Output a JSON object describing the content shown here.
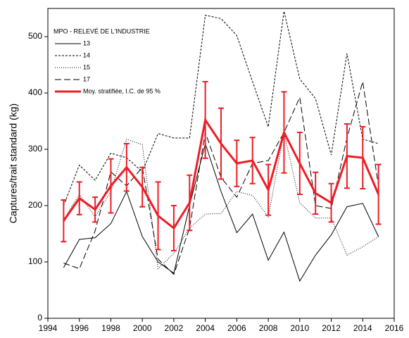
{
  "chart_data": {
    "type": "line",
    "ylabel": "Captures/trait standard (kg)",
    "legend_title": "MPO - RELEVÉ DE L'INDUSTRIE",
    "legend": "upper left",
    "grid": false,
    "xlim": [
      1994,
      2016
    ],
    "xticks": [
      1994,
      1996,
      1998,
      2000,
      2002,
      2004,
      2006,
      2008,
      2010,
      2012,
      2014,
      2016
    ],
    "ylim": [
      0,
      550
    ],
    "yticks": [
      0,
      100,
      200,
      300,
      400,
      500
    ],
    "x": [
      1995,
      1996,
      1997,
      1998,
      1999,
      2000,
      2001,
      2002,
      2003,
      2004,
      2005,
      2006,
      2007,
      2008,
      2009,
      2010,
      2011,
      2012,
      2013,
      2014,
      2015
    ],
    "series": [
      {
        "name": "13",
        "color": "#000000",
        "dash": "none",
        "width": 1,
        "values": [
          90,
          140,
          143,
          168,
          225,
          145,
          100,
          80,
          200,
          310,
          225,
          152,
          185,
          103,
          153,
          66,
          112,
          148,
          198,
          204,
          145
        ]
      },
      {
        "name": "14",
        "color": "#000000",
        "dash": "3,2",
        "width": 1,
        "values": [
          200,
          272,
          245,
          293,
          285,
          260,
          328,
          320,
          320,
          538,
          532,
          502,
          420,
          340,
          545,
          425,
          390,
          290,
          470,
          318,
          310
        ]
      },
      {
        "name": "15",
        "color": "#000000",
        "dash": "1,2",
        "width": 1,
        "values": [
          175,
          220,
          180,
          225,
          318,
          308,
          88,
          115,
          160,
          185,
          186,
          225,
          218,
          180,
          330,
          205,
          178,
          178,
          112,
          127,
          145
        ]
      },
      {
        "name": "17",
        "color": "#000000",
        "dash": "9,4",
        "width": 1,
        "values": [
          98,
          88,
          155,
          260,
          235,
          268,
          105,
          78,
          160,
          330,
          250,
          215,
          275,
          280,
          330,
          392,
          200,
          195,
          320,
          420,
          235
        ]
      },
      {
        "name": "Moy. stratifiée, I.C. de 95 %",
        "color": "#ee1c25",
        "dash": "none",
        "width": 3,
        "values": [
          173,
          213,
          193,
          235,
          268,
          233,
          182,
          160,
          205,
          352,
          310,
          275,
          280,
          228,
          330,
          275,
          222,
          205,
          288,
          285,
          220
        ],
        "errors": [
          37,
          29,
          22,
          48,
          42,
          35,
          60,
          40,
          49,
          68,
          63,
          41,
          41,
          45,
          72,
          55,
          37,
          34,
          57,
          55,
          53
        ]
      }
    ]
  }
}
